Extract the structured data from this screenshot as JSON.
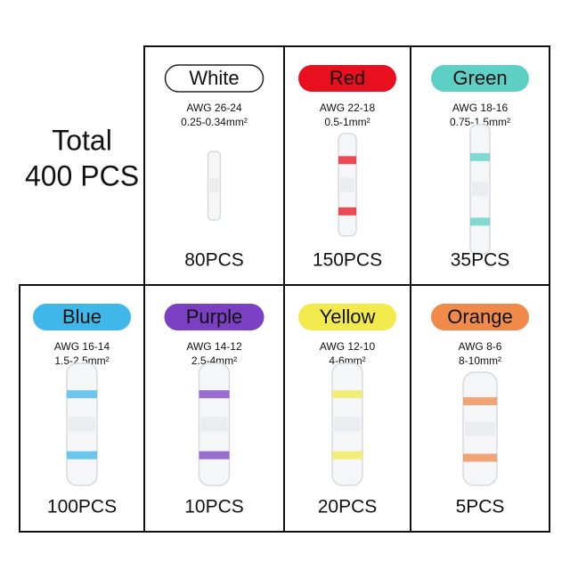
{
  "header": {
    "title_line1": "Total",
    "title_line2": "400 PCS"
  },
  "items": [
    {
      "name": "White",
      "awg": "AWG 26-24",
      "size": "0.25-0.34mm²",
      "count": "80PCS",
      "color": "#ffffff"
    },
    {
      "name": "Red",
      "awg": "AWG 22-18",
      "size": "0.5-1mm²",
      "count": "150PCS",
      "color": "#e8101e"
    },
    {
      "name": "Green",
      "awg": "AWG 18-16",
      "size": "0.75-1.5mm²",
      "count": "35PCS",
      "color": "#5ecfc4"
    },
    {
      "name": "Blue",
      "awg": "AWG 16-14",
      "size": "1.5-2.5mm²",
      "count": "100PCS",
      "color": "#3fb7e8"
    },
    {
      "name": "Purple",
      "awg": "AWG 14-12",
      "size": "2.5-4mm²",
      "count": "10PCS",
      "color": "#7b3fc4"
    },
    {
      "name": "Yellow",
      "awg": "AWG 12-10",
      "size": "4-6mm²",
      "count": "20PCS",
      "color": "#f2ea4c"
    },
    {
      "name": "Orange",
      "awg": "AWG 8-6",
      "size": "8-10mm²",
      "count": "5PCS",
      "color": "#f08a4b"
    }
  ]
}
